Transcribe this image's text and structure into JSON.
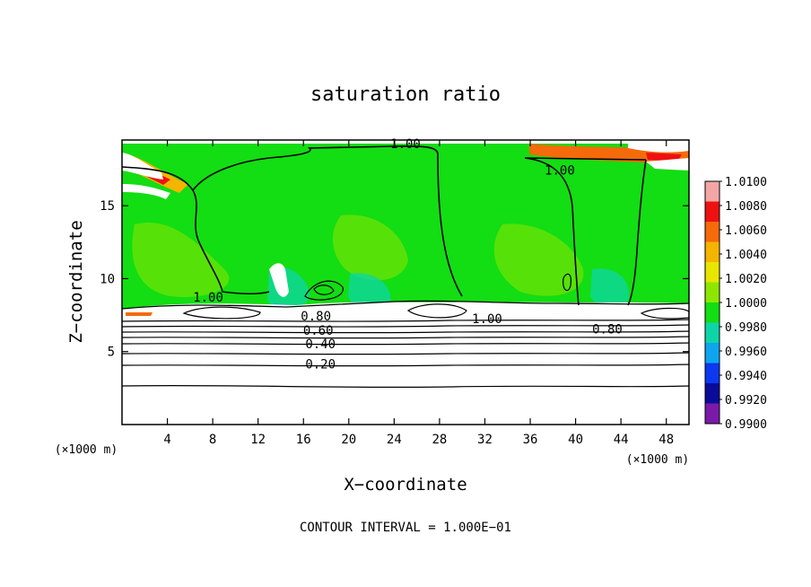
{
  "chart_data": {
    "type": "heatmap",
    "title": "saturation ratio",
    "xlabel": "X−coordinate",
    "ylabel": "Z−coordinate",
    "x_unit": "(×1000 m)",
    "z_unit": "(×1000 m)",
    "footer": "CONTOUR INTERVAL = 1.000E−01",
    "xlim": [
      0,
      50
    ],
    "ylim": [
      0,
      19.5
    ],
    "x_ticks": [
      4,
      8,
      12,
      16,
      20,
      24,
      28,
      32,
      36,
      40,
      44,
      48
    ],
    "y_ticks": [
      5,
      10,
      15
    ],
    "contour_interval": 0.1,
    "contour_labels": [
      {
        "text": "1.00",
        "x": 25.0,
        "y": 19.0
      },
      {
        "text": "1.00",
        "x": 38.6,
        "y": 17.2
      },
      {
        "text": "1.00",
        "x": 7.6,
        "y": 8.5
      },
      {
        "text": "1.00",
        "x": 32.2,
        "y": 7.0
      },
      {
        "text": "0.80",
        "x": 17.1,
        "y": 7.2
      },
      {
        "text": "0.80",
        "x": 42.8,
        "y": 6.3
      },
      {
        "text": "0.60",
        "x": 17.3,
        "y": 6.2
      },
      {
        "text": "0.40",
        "x": 17.5,
        "y": 5.3
      },
      {
        "text": "0.20",
        "x": 17.5,
        "y": 3.9
      }
    ],
    "colorbar": {
      "labels": [
        "1.0100",
        "1.0080",
        "1.0060",
        "1.0040",
        "1.0020",
        "1.0000",
        "0.9980",
        "0.9960",
        "0.9940",
        "0.9920",
        "0.9900"
      ],
      "colors": [
        "#f4a6a6",
        "#ee1111",
        "#f56a0a",
        "#f5b400",
        "#e8e600",
        "#8ee600",
        "#13dd13",
        "#0ed5a8",
        "#0ea5f0",
        "#0c38f0",
        "#0b0b9a",
        "#7a1aa8"
      ]
    }
  }
}
